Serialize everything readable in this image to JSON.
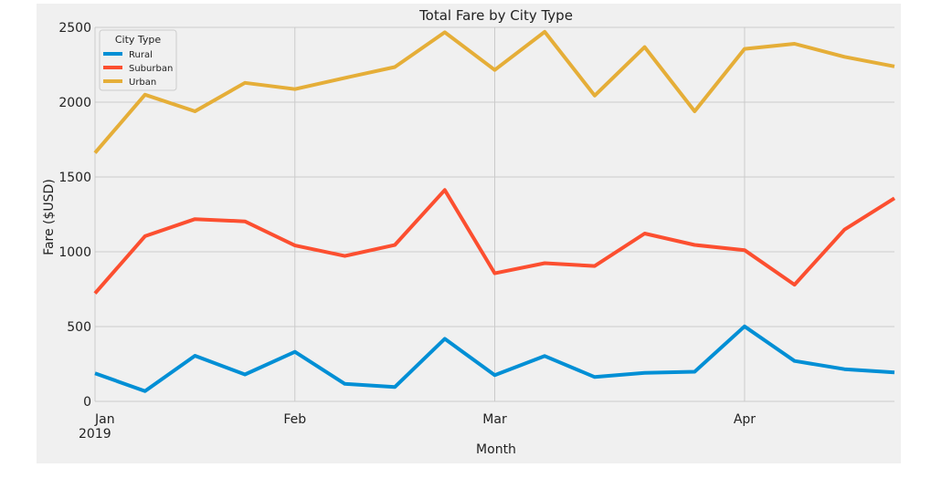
{
  "chart_data": {
    "type": "line",
    "title": "Total Fare by City Type",
    "xlabel": "Month",
    "ylabel": "Fare ($USD)",
    "ylim": [
      0,
      2500
    ],
    "yticks": [
      0,
      500,
      1000,
      1500,
      2000,
      2500
    ],
    "grid": true,
    "legend": {
      "title": "City Type",
      "placement": "top-left"
    },
    "x": [
      "2019-01-06",
      "2019-01-13",
      "2019-01-20",
      "2019-01-27",
      "2019-02-03",
      "2019-02-10",
      "2019-02-17",
      "2019-02-24",
      "2019-03-03",
      "2019-03-10",
      "2019-03-17",
      "2019-03-24",
      "2019-03-31",
      "2019-04-07",
      "2019-04-14",
      "2019-04-21",
      "2019-04-28"
    ],
    "xlim": [
      "2019-01-06",
      "2019-04-28"
    ],
    "xticks": [
      {
        "label": "Jan",
        "sublabel": "2019",
        "date": "2019-01-06"
      },
      {
        "label": "Feb",
        "sublabel": "",
        "date": "2019-02-03"
      },
      {
        "label": "Mar",
        "sublabel": "",
        "date": "2019-03-03"
      },
      {
        "label": "Apr",
        "sublabel": "",
        "date": "2019-04-07"
      }
    ],
    "series": [
      {
        "name": "Rural",
        "color": "#008fd5",
        "values": [
          188,
          68,
          305,
          180,
          331,
          117,
          96,
          418,
          175,
          303,
          163,
          190,
          198,
          501,
          270,
          215,
          193
        ]
      },
      {
        "name": "Suburban",
        "color": "#fc4f30",
        "values": [
          722,
          1104,
          1218,
          1203,
          1042,
          972,
          1045,
          1413,
          856,
          924,
          905,
          1122,
          1046,
          1011,
          780,
          1148,
          1358
        ]
      },
      {
        "name": "Urban",
        "color": "#e5ae38",
        "values": [
          1661,
          2050,
          1939,
          2129,
          2087,
          2162,
          2235,
          2467,
          2215,
          2470,
          2044,
          2368,
          1939,
          2356,
          2390,
          2303,
          2239
        ]
      }
    ]
  }
}
